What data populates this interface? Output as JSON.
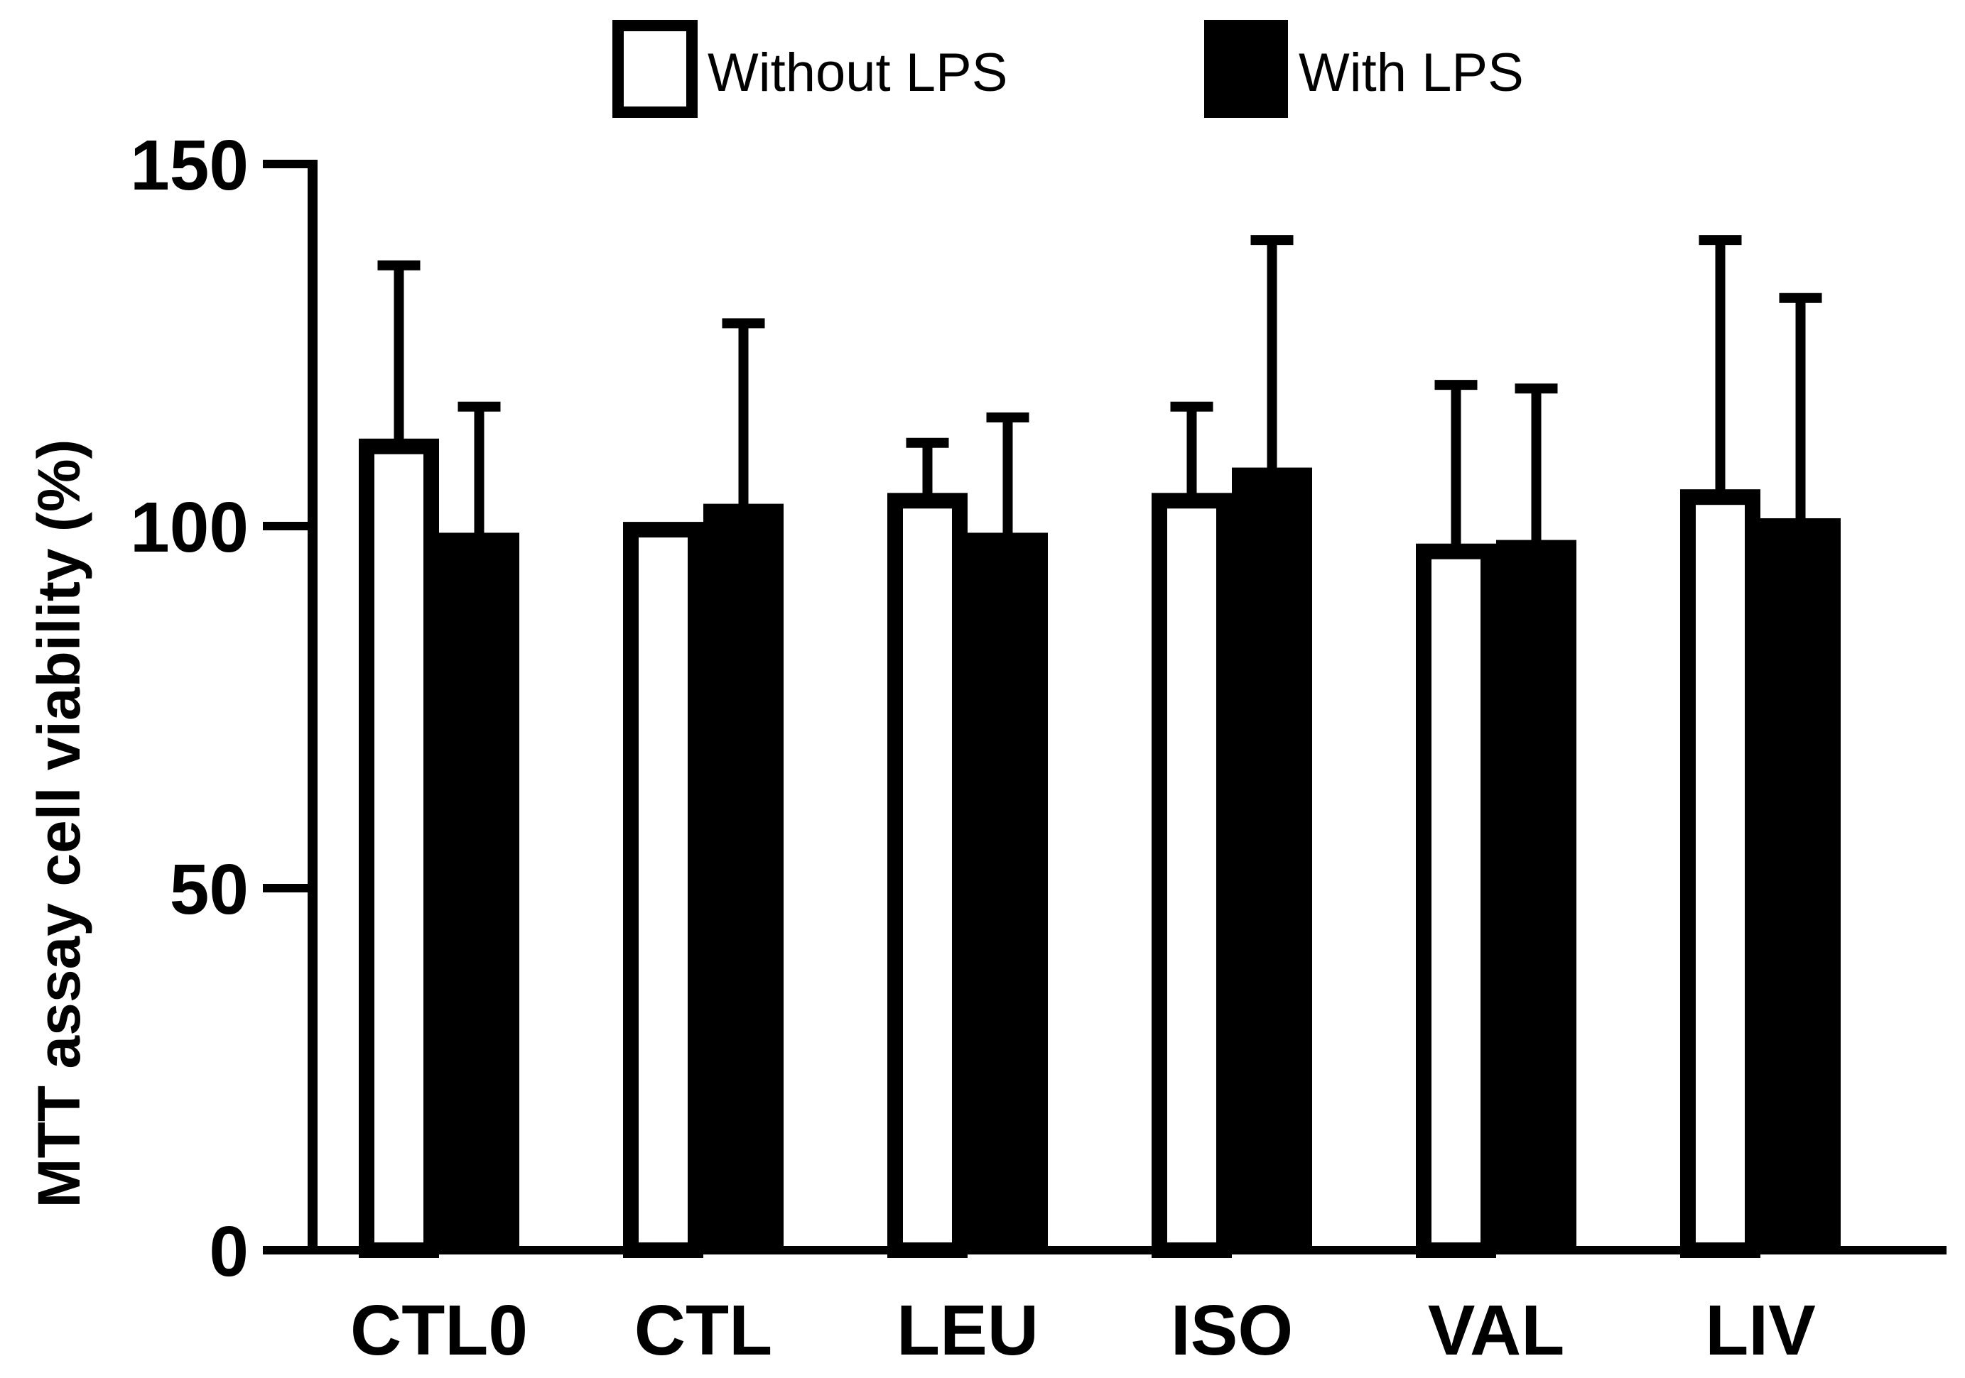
{
  "chart_data": {
    "type": "bar",
    "title": "",
    "xlabel": "",
    "ylabel": "MTT assay cell viability (%)",
    "ylim": [
      0,
      150
    ],
    "yticks": [
      "0",
      "50",
      "100",
      "150"
    ],
    "categories": [
      "CTL0",
      "CTL",
      "LEU",
      "ISO",
      "VAL",
      "LIV"
    ],
    "series": [
      {
        "name": "Without LPS",
        "fill": "#ffffff",
        "stroke": "#000000",
        "values": [
          111,
          99.5,
          103.5,
          103.5,
          96.5,
          104
        ],
        "errors": [
          25,
          0,
          8,
          13,
          23,
          35.5
        ]
      },
      {
        "name": "With LPS",
        "fill": "#000000",
        "stroke": "#000000",
        "values": [
          98,
          102,
          98,
          107,
          97,
          100
        ],
        "errors": [
          18.5,
          26,
          17,
          32.5,
          22,
          31.5
        ]
      }
    ],
    "legend_position": "top-center",
    "grid": false
  }
}
